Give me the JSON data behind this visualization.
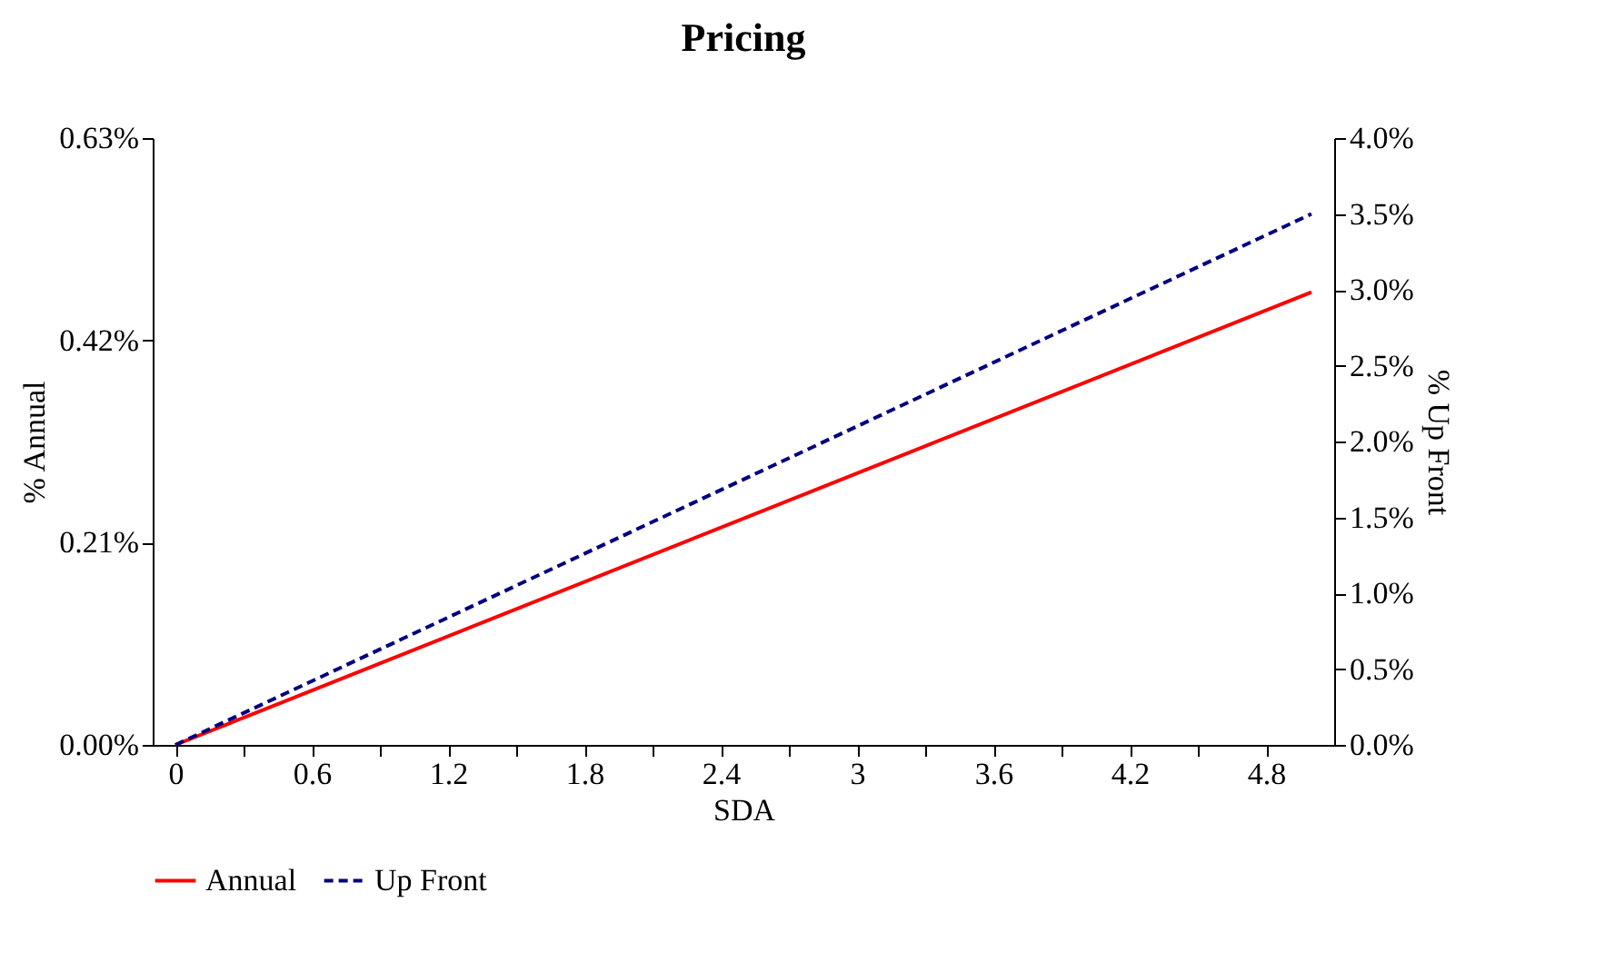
{
  "chart_data": {
    "type": "line",
    "title": "Pricing",
    "xlabel": "SDA",
    "ylabel": "% Annual",
    "y2label": "% Up Front",
    "x": [
      0,
      5
    ],
    "series": [
      {
        "name": "Annual",
        "color": "#ff0000",
        "line_style": "solid",
        "values": [
          0,
          0.47
        ]
      },
      {
        "name": "Up Front",
        "color": "#000080",
        "line_style": "dashed",
        "axis": "y2",
        "values": [
          0,
          3.5
        ]
      }
    ],
    "xlim": [
      -0.1,
      5.1
    ],
    "xticks": [
      0,
      {
        "value": 0.3,
        "label": null
      },
      0.6,
      {
        "value": 0.9,
        "label": null
      },
      1.2,
      {
        "value": 1.5,
        "label": null
      },
      1.8,
      {
        "value": 2.1,
        "label": null
      },
      2.4,
      {
        "value": 2.7,
        "label": null
      },
      3,
      {
        "value": 3.3,
        "label": null
      },
      3.6,
      {
        "value": 3.9,
        "label": null
      },
      4.2,
      {
        "value": 4.5,
        "label": null
      },
      4.8
    ],
    "ylim": [
      0,
      0.63
    ],
    "yticks": [
      {
        "value": 0,
        "label": "0.00%"
      },
      {
        "value": 0.21,
        "label": "0.21%"
      },
      {
        "value": 0.42,
        "label": "0.42%"
      },
      {
        "value": 0.63,
        "label": "0.63%"
      }
    ],
    "y2lim": [
      0,
      4
    ],
    "y2ticks": [
      {
        "value": 0,
        "label": "0.0%"
      },
      {
        "value": 0.5,
        "label": "0.5%"
      },
      {
        "value": 1,
        "label": "1.0%"
      },
      {
        "value": 1.5,
        "label": "1.5%"
      },
      {
        "value": 2,
        "label": "2.0%"
      },
      {
        "value": 2.5,
        "label": "2.5%"
      },
      {
        "value": 3,
        "label": "3.0%"
      },
      {
        "value": 3.5,
        "label": "3.5%"
      },
      {
        "value": 4,
        "label": "4.0%"
      }
    ],
    "legend": "bottom",
    "grid": false,
    "marker": "none"
  }
}
